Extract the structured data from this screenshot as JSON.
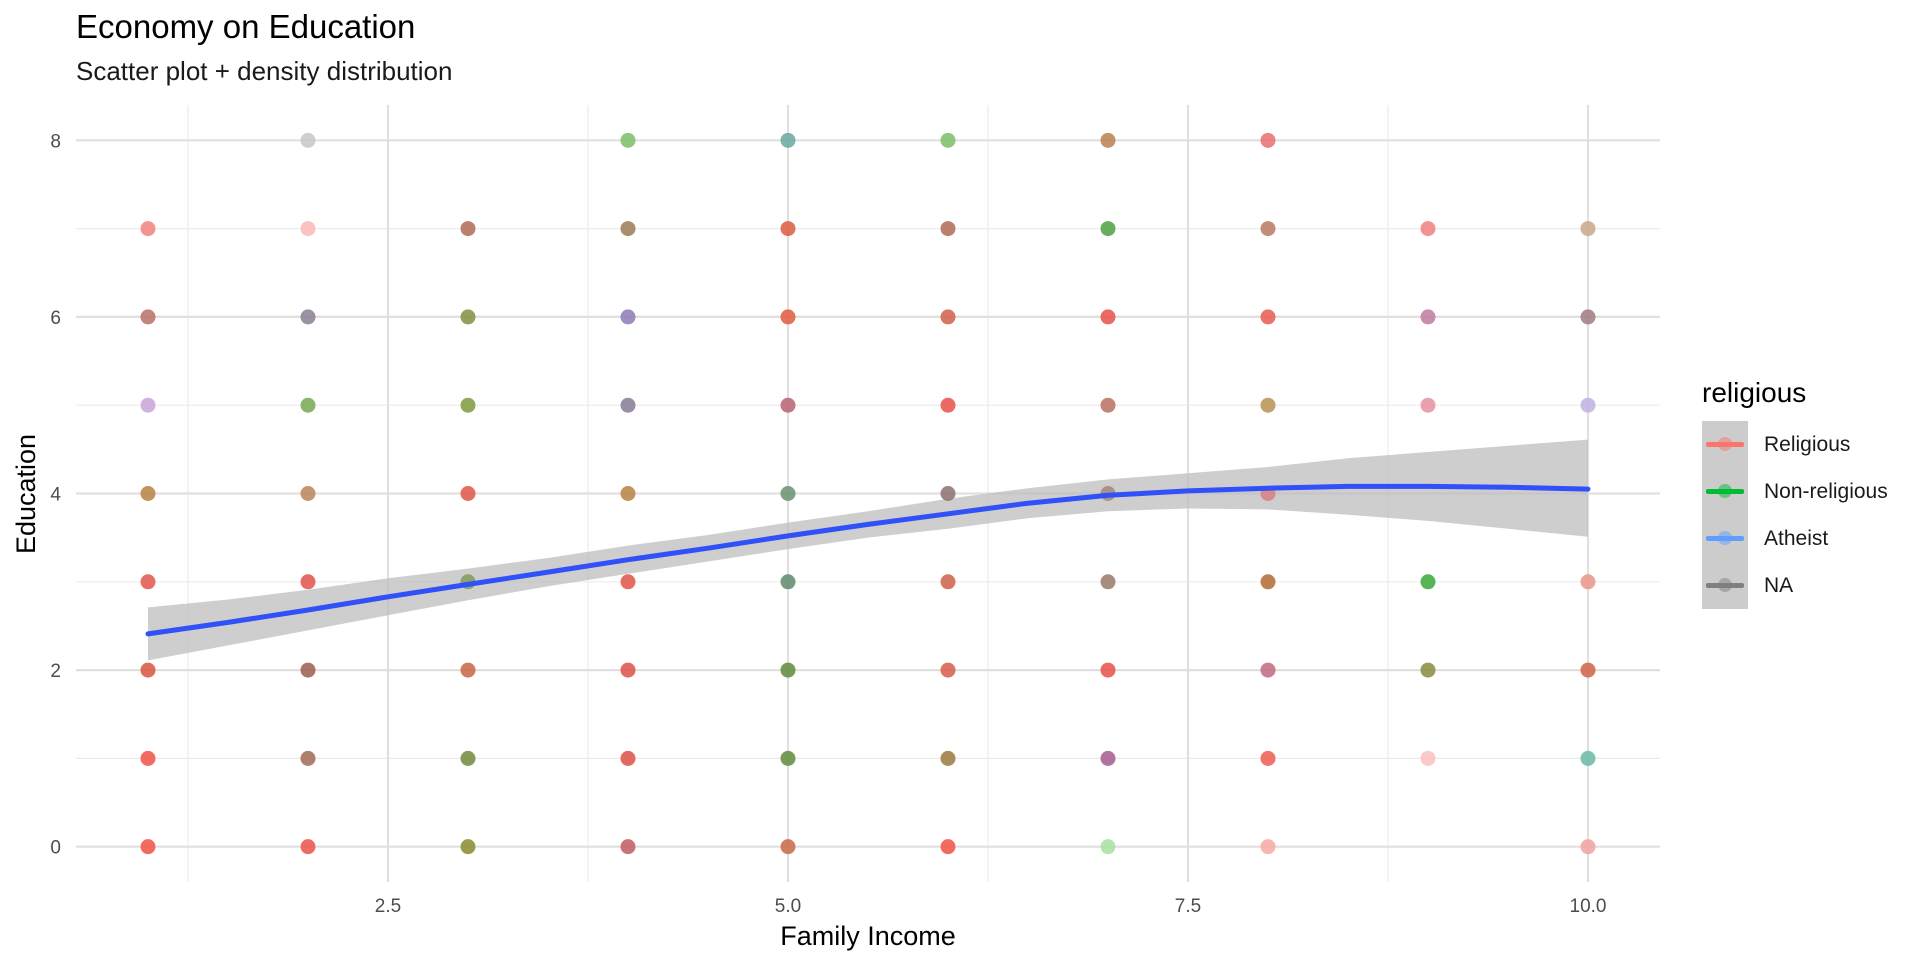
{
  "chart_data": {
    "type": "scatter",
    "title": "Economy on Education",
    "subtitle": "Scatter plot + density distribution",
    "xlabel": "Family Income",
    "ylabel": "Education",
    "xlim": [
      0.55,
      10.45
    ],
    "ylim": [
      -0.4,
      8.4
    ],
    "x_ticks": [
      2.5,
      5.0,
      7.5,
      10.0
    ],
    "x_tick_labels": [
      "2.5",
      "5.0",
      "7.5",
      "10.0"
    ],
    "y_ticks": [
      0,
      2,
      4,
      6,
      8
    ],
    "y_tick_labels": [
      "0",
      "2",
      "4",
      "6",
      "8"
    ],
    "grid": true,
    "legend": {
      "title": "religious",
      "position": "right",
      "entries": [
        {
          "label": "Religious",
          "color": "#F8766D"
        },
        {
          "label": "Non-religious",
          "color": "#00BA38"
        },
        {
          "label": "Atheist",
          "color": "#619CFF"
        },
        {
          "label": "NA",
          "color": "#7f7f7f"
        }
      ]
    },
    "points": [
      {
        "x": 1,
        "y": 7,
        "color": "#f0837c"
      },
      {
        "x": 1,
        "y": 6,
        "color": "#b9706a"
      },
      {
        "x": 1,
        "y": 5,
        "color": "#c9a4d8"
      },
      {
        "x": 1,
        "y": 4,
        "color": "#b9803f"
      },
      {
        "x": 1,
        "y": 3,
        "color": "#e0564c"
      },
      {
        "x": 1,
        "y": 2,
        "color": "#d9533f"
      },
      {
        "x": 1,
        "y": 1,
        "color": "#ee5148"
      },
      {
        "x": 1,
        "y": 0,
        "color": "#ee5148"
      },
      {
        "x": 2,
        "y": 8,
        "color": "#c7c7c7"
      },
      {
        "x": 2,
        "y": 7,
        "color": "#f9b8b8"
      },
      {
        "x": 2,
        "y": 6,
        "color": "#8a8090"
      },
      {
        "x": 2,
        "y": 5,
        "color": "#74a952"
      },
      {
        "x": 2,
        "y": 4,
        "color": "#b9855a"
      },
      {
        "x": 2,
        "y": 3,
        "color": "#e0524c"
      },
      {
        "x": 2,
        "y": 2,
        "color": "#9b5e4c"
      },
      {
        "x": 2,
        "y": 1,
        "color": "#a06a55"
      },
      {
        "x": 2,
        "y": 0,
        "color": "#ea5249"
      },
      {
        "x": 3,
        "y": 7,
        "color": "#b26a55"
      },
      {
        "x": 3,
        "y": 6,
        "color": "#809040"
      },
      {
        "x": 3,
        "y": 5,
        "color": "#7f9a3c"
      },
      {
        "x": 3,
        "y": 4,
        "color": "#de5546"
      },
      {
        "x": 3,
        "y": 3,
        "color": "#7f9a5a"
      },
      {
        "x": 3,
        "y": 2,
        "color": "#c76545"
      },
      {
        "x": 3,
        "y": 1,
        "color": "#728a3c"
      },
      {
        "x": 3,
        "y": 0,
        "color": "#8a8a30"
      },
      {
        "x": 4,
        "y": 8,
        "color": "#7cbe6a"
      },
      {
        "x": 4,
        "y": 7,
        "color": "#9b7a55"
      },
      {
        "x": 4,
        "y": 6,
        "color": "#8f7ab8"
      },
      {
        "x": 4,
        "y": 5,
        "color": "#837a95"
      },
      {
        "x": 4,
        "y": 4,
        "color": "#b88040"
      },
      {
        "x": 4,
        "y": 3,
        "color": "#e05548"
      },
      {
        "x": 4,
        "y": 2,
        "color": "#dd5046"
      },
      {
        "x": 4,
        "y": 1,
        "color": "#dd5048"
      },
      {
        "x": 4,
        "y": 0,
        "color": "#c05a60"
      },
      {
        "x": 5,
        "y": 8,
        "color": "#6aa8a0"
      },
      {
        "x": 5,
        "y": 7,
        "color": "#dd5a40"
      },
      {
        "x": 5,
        "y": 6,
        "color": "#e05a40"
      },
      {
        "x": 5,
        "y": 5,
        "color": "#b86070"
      },
      {
        "x": 5,
        "y": 4,
        "color": "#6a9070"
      },
      {
        "x": 5,
        "y": 3,
        "color": "#5f8a6a"
      },
      {
        "x": 5,
        "y": 2,
        "color": "#5f8a3c"
      },
      {
        "x": 5,
        "y": 1,
        "color": "#5f8a3c"
      },
      {
        "x": 5,
        "y": 0,
        "color": "#c8684a"
      },
      {
        "x": 6,
        "y": 8,
        "color": "#7cbe6a"
      },
      {
        "x": 6,
        "y": 7,
        "color": "#b06a55"
      },
      {
        "x": 6,
        "y": 6,
        "color": "#d0604a"
      },
      {
        "x": 6,
        "y": 5,
        "color": "#e85048"
      },
      {
        "x": 6,
        "y": 4,
        "color": "#8a7070"
      },
      {
        "x": 6,
        "y": 3,
        "color": "#cc6048"
      },
      {
        "x": 6,
        "y": 2,
        "color": "#d85c48"
      },
      {
        "x": 6,
        "y": 1,
        "color": "#9a7a3c"
      },
      {
        "x": 6,
        "y": 0,
        "color": "#ee5148"
      },
      {
        "x": 7,
        "y": 8,
        "color": "#b8804f"
      },
      {
        "x": 7,
        "y": 7,
        "color": "#4fa040"
      },
      {
        "x": 7,
        "y": 6,
        "color": "#e85048"
      },
      {
        "x": 7,
        "y": 5,
        "color": "#b87060"
      },
      {
        "x": 7,
        "y": 4,
        "color": "#a08878"
      },
      {
        "x": 7,
        "y": 3,
        "color": "#9a7a6a"
      },
      {
        "x": 7,
        "y": 2,
        "color": "#e85048"
      },
      {
        "x": 7,
        "y": 1,
        "color": "#a55a90"
      },
      {
        "x": 7,
        "y": 0,
        "color": "#a8e0a0"
      },
      {
        "x": 8,
        "y": 8,
        "color": "#e87070"
      },
      {
        "x": 8,
        "y": 7,
        "color": "#b87a60"
      },
      {
        "x": 8,
        "y": 6,
        "color": "#e85a4f"
      },
      {
        "x": 8,
        "y": 5,
        "color": "#b89050"
      },
      {
        "x": 8,
        "y": 4,
        "color": "#d88080"
      },
      {
        "x": 8,
        "y": 3,
        "color": "#b06a35"
      },
      {
        "x": 8,
        "y": 2,
        "color": "#c06a80"
      },
      {
        "x": 8,
        "y": 1,
        "color": "#ee5a50"
      },
      {
        "x": 8,
        "y": 0,
        "color": "#f9a8a0"
      },
      {
        "x": 9,
        "y": 7,
        "color": "#f08080"
      },
      {
        "x": 9,
        "y": 6,
        "color": "#c07aa0"
      },
      {
        "x": 9,
        "y": 5,
        "color": "#e590a0"
      },
      {
        "x": 9,
        "y": 3,
        "color": "#3aa838"
      },
      {
        "x": 9,
        "y": 2,
        "color": "#8a8a40"
      },
      {
        "x": 9,
        "y": 1,
        "color": "#f9c0c0"
      },
      {
        "x": 10,
        "y": 7,
        "color": "#c8a888"
      },
      {
        "x": 10,
        "y": 6,
        "color": "#a07a80"
      },
      {
        "x": 10,
        "y": 5,
        "color": "#c0b0e0"
      },
      {
        "x": 10,
        "y": 3,
        "color": "#e8958a"
      },
      {
        "x": 10,
        "y": 2,
        "color": "#d06048"
      },
      {
        "x": 10,
        "y": 1,
        "color": "#6ab8a8"
      },
      {
        "x": 10,
        "y": 0,
        "color": "#f3a0a0"
      }
    ],
    "smooth_fit": {
      "method": "loess",
      "color": "#3050f8",
      "ribbon_color": "#bdbdbd",
      "x": [
        1,
        1.5,
        2,
        2.5,
        3,
        3.5,
        4,
        4.5,
        5,
        5.5,
        6,
        6.5,
        7,
        7.5,
        8,
        8.5,
        9,
        9.5,
        10
      ],
      "y": [
        2.41,
        2.54,
        2.68,
        2.83,
        2.97,
        3.11,
        3.25,
        3.38,
        3.52,
        3.65,
        3.77,
        3.89,
        3.98,
        4.03,
        4.06,
        4.08,
        4.08,
        4.07,
        4.05
      ],
      "lower": [
        2.11,
        2.28,
        2.45,
        2.62,
        2.79,
        2.95,
        3.09,
        3.23,
        3.37,
        3.5,
        3.6,
        3.72,
        3.8,
        3.83,
        3.82,
        3.76,
        3.69,
        3.6,
        3.51
      ],
      "upper": [
        2.71,
        2.8,
        2.91,
        3.04,
        3.15,
        3.27,
        3.41,
        3.53,
        3.67,
        3.8,
        3.94,
        4.06,
        4.16,
        4.23,
        4.3,
        4.4,
        4.47,
        4.54,
        4.61
      ]
    }
  }
}
